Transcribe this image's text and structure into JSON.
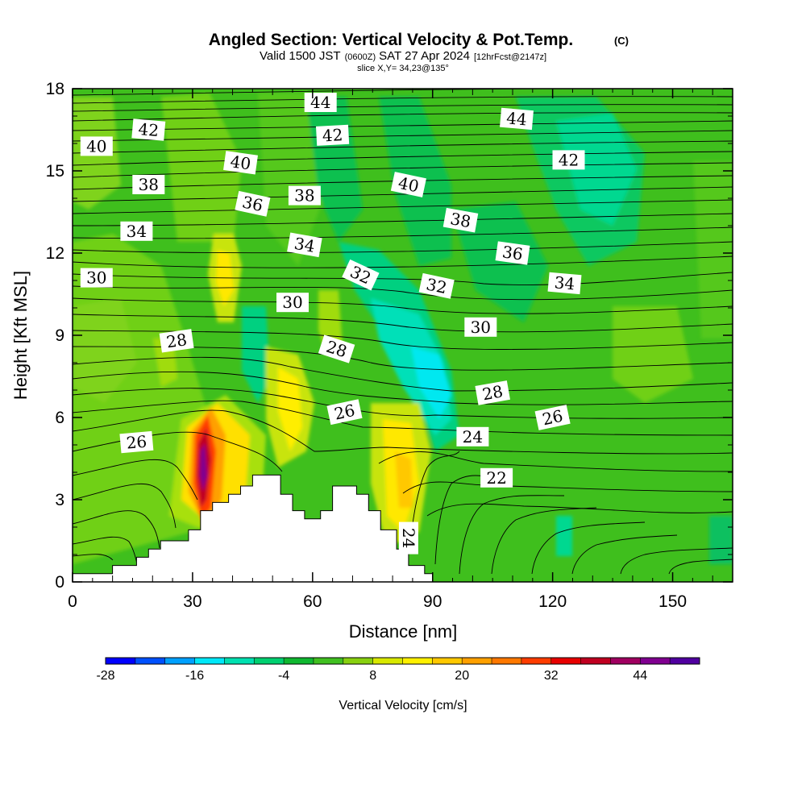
{
  "chart_data": {
    "type": "heatmap",
    "title": "Angled Section: Vertical Velocity & Pot.Temp.",
    "title_unit": "(C)",
    "subtitle_parts": [
      "Valid 1500 JST",
      "(0600Z)",
      "SAT 27 Apr 2024",
      "[12hrFcst@2147z]"
    ],
    "subtitle2": "slice X,Y= 34,23@135°",
    "xlabel": "Distance [nm]",
    "ylabel": "Height [Kft MSL]",
    "xlim": [
      0,
      165
    ],
    "ylim": [
      0,
      18
    ],
    "x_ticks": [
      0,
      30,
      60,
      90,
      120,
      150
    ],
    "y_ticks": [
      0,
      3,
      6,
      9,
      12,
      15,
      18
    ],
    "colorbar": {
      "label": "Vertical Velocity [cm/s]",
      "min": -28,
      "max": 52,
      "tick_values": [
        -28,
        -16,
        -4,
        8,
        20,
        32,
        44
      ],
      "colors": [
        "#0000ff",
        "#0050ff",
        "#00a0ff",
        "#00e8f8",
        "#00e0b0",
        "#00d070",
        "#10b830",
        "#40c020",
        "#88d010",
        "#d8e800",
        "#fff000",
        "#ffc800",
        "#ffa000",
        "#ff7800",
        "#ff3c00",
        "#e80000",
        "#c00020",
        "#a00060",
        "#800090",
        "#5000a0"
      ]
    },
    "terrain_profile": [
      [
        0,
        0.3
      ],
      [
        10,
        0.3
      ],
      [
        10,
        0.6
      ],
      [
        16,
        0.6
      ],
      [
        16,
        0.9
      ],
      [
        19,
        0.9
      ],
      [
        19,
        1.2
      ],
      [
        22,
        1.2
      ],
      [
        22,
        1.5
      ],
      [
        29,
        1.5
      ],
      [
        29,
        1.9
      ],
      [
        32,
        1.9
      ],
      [
        32,
        2.6
      ],
      [
        35,
        2.6
      ],
      [
        35,
        2.9
      ],
      [
        39,
        2.9
      ],
      [
        39,
        3.2
      ],
      [
        42,
        3.2
      ],
      [
        42,
        3.5
      ],
      [
        45,
        3.5
      ],
      [
        45,
        3.9
      ],
      [
        52,
        3.9
      ],
      [
        52,
        3.2
      ],
      [
        55,
        3.2
      ],
      [
        55,
        2.6
      ],
      [
        58,
        2.6
      ],
      [
        58,
        2.3
      ],
      [
        62,
        2.3
      ],
      [
        62,
        2.6
      ],
      [
        65,
        2.6
      ],
      [
        65,
        3.5
      ],
      [
        71,
        3.5
      ],
      [
        71,
        3.2
      ],
      [
        74,
        3.2
      ],
      [
        74,
        2.6
      ],
      [
        77,
        2.6
      ],
      [
        77,
        1.9
      ],
      [
        81,
        1.9
      ],
      [
        81,
        1.2
      ],
      [
        84,
        1.2
      ],
      [
        84,
        0.6
      ],
      [
        88,
        0.6
      ],
      [
        88,
        0.3
      ],
      [
        90,
        0.3
      ],
      [
        90,
        0
      ],
      [
        0,
        0
      ]
    ],
    "pot_temp_labels": [
      {
        "text": "44",
        "x": 62,
        "y": 17.5,
        "rot": 0
      },
      {
        "text": "44",
        "x": 111,
        "y": 16.9,
        "rot": 5
      },
      {
        "text": "42",
        "x": 19,
        "y": 16.5,
        "rot": 5
      },
      {
        "text": "42",
        "x": 65,
        "y": 16.3,
        "rot": -3
      },
      {
        "text": "42",
        "x": 124,
        "y": 15.4,
        "rot": 0
      },
      {
        "text": "40",
        "x": 6,
        "y": 15.9,
        "rot": 0
      },
      {
        "text": "40",
        "x": 42,
        "y": 15.3,
        "rot": 8
      },
      {
        "text": "40",
        "x": 84,
        "y": 14.5,
        "rot": 12
      },
      {
        "text": "38",
        "x": 19,
        "y": 14.5,
        "rot": 0
      },
      {
        "text": "38",
        "x": 58,
        "y": 14.1,
        "rot": 0
      },
      {
        "text": "38",
        "x": 97,
        "y": 13.2,
        "rot": 10
      },
      {
        "text": "36",
        "x": 45,
        "y": 13.8,
        "rot": 12
      },
      {
        "text": "36",
        "x": 110,
        "y": 12,
        "rot": 8
      },
      {
        "text": "34",
        "x": 16,
        "y": 12.8,
        "rot": 0
      },
      {
        "text": "34",
        "x": 58,
        "y": 12.3,
        "rot": 10
      },
      {
        "text": "34",
        "x": 123,
        "y": 10.9,
        "rot": 5
      },
      {
        "text": "32",
        "x": 72,
        "y": 11.2,
        "rot": 25
      },
      {
        "text": "32",
        "x": 91,
        "y": 10.8,
        "rot": 12
      },
      {
        "text": "30",
        "x": 6,
        "y": 11.1,
        "rot": 0
      },
      {
        "text": "30",
        "x": 55,
        "y": 10.2,
        "rot": 0
      },
      {
        "text": "30",
        "x": 102,
        "y": 9.3,
        "rot": 0
      },
      {
        "text": "28",
        "x": 26,
        "y": 8.8,
        "rot": -8
      },
      {
        "text": "28",
        "x": 66,
        "y": 8.5,
        "rot": 18
      },
      {
        "text": "28",
        "x": 105,
        "y": 6.9,
        "rot": -10
      },
      {
        "text": "26",
        "x": 16,
        "y": 5.1,
        "rot": -5
      },
      {
        "text": "26",
        "x": 68,
        "y": 6.2,
        "rot": -12
      },
      {
        "text": "26",
        "x": 120,
        "y": 6,
        "rot": -12
      },
      {
        "text": "24",
        "x": 100,
        "y": 5.3,
        "rot": 0
      },
      {
        "text": "24",
        "x": 84,
        "y": 1.6,
        "rot": 90
      },
      {
        "text": "22",
        "x": 106,
        "y": 3.8,
        "rot": 0
      }
    ]
  }
}
